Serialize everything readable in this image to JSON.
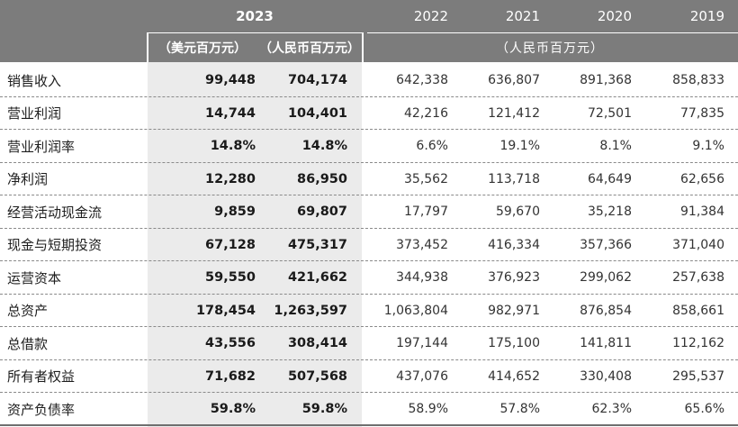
{
  "header": {
    "year_2023": "2023",
    "years": [
      "2022",
      "2021",
      "2020",
      "2019"
    ],
    "unit_usd": "（美元百万元）",
    "unit_rmb_2023": "（人民币百万元）",
    "unit_rmb_hist": "（人民币百万元）"
  },
  "rows": [
    {
      "label": "销售收入",
      "usd": "99,448",
      "rmb": "704,174",
      "y2022": "642,338",
      "y2021": "636,807",
      "y2020": "891,368",
      "y2019": "858,833"
    },
    {
      "label": "营业利润",
      "usd": "14,744",
      "rmb": "104,401",
      "y2022": "42,216",
      "y2021": "121,412",
      "y2020": "72,501",
      "y2019": "77,835"
    },
    {
      "label": "营业利润率",
      "usd": "14.8%",
      "rmb": "14.8%",
      "y2022": "6.6%",
      "y2021": "19.1%",
      "y2020": "8.1%",
      "y2019": "9.1%"
    },
    {
      "label": "净利润",
      "usd": "12,280",
      "rmb": "86,950",
      "y2022": "35,562",
      "y2021": "113,718",
      "y2020": "64,649",
      "y2019": "62,656"
    },
    {
      "label": "经营活动现金流",
      "usd": "9,859",
      "rmb": "69,807",
      "y2022": "17,797",
      "y2021": "59,670",
      "y2020": "35,218",
      "y2019": "91,384"
    },
    {
      "label": "现金与短期投资",
      "usd": "67,128",
      "rmb": "475,317",
      "y2022": "373,452",
      "y2021": "416,334",
      "y2020": "357,366",
      "y2019": "371,040"
    },
    {
      "label": "运营资本",
      "usd": "59,550",
      "rmb": "421,662",
      "y2022": "344,938",
      "y2021": "376,923",
      "y2020": "299,062",
      "y2019": "257,638"
    },
    {
      "label": "总资产",
      "usd": "178,454",
      "rmb": "1,263,597",
      "y2022": "1,063,804",
      "y2021": "982,971",
      "y2020": "876,854",
      "y2019": "858,661"
    },
    {
      "label": "总借款",
      "usd": "43,556",
      "rmb": "308,414",
      "y2022": "197,144",
      "y2021": "175,100",
      "y2020": "141,811",
      "y2019": "112,162"
    },
    {
      "label": "所有者权益",
      "usd": "71,682",
      "rmb": "507,568",
      "y2022": "437,076",
      "y2021": "414,652",
      "y2020": "330,408",
      "y2019": "295,537"
    },
    {
      "label": "资产负债率",
      "usd": "59.8%",
      "rmb": "59.8%",
      "y2022": "58.9%",
      "y2021": "57.8%",
      "y2020": "62.3%",
      "y2019": "65.6%"
    }
  ]
}
